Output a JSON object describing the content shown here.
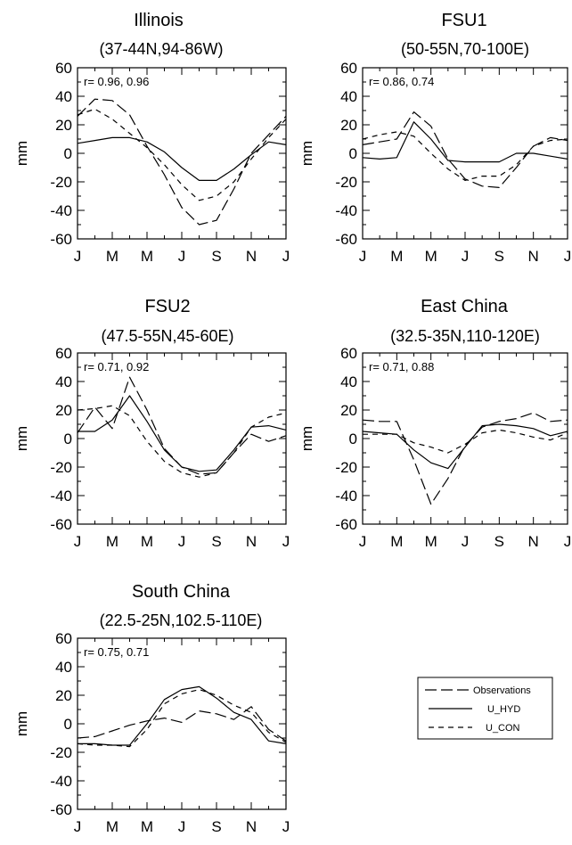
{
  "chart_data": [
    {
      "type": "line",
      "title": "Illinois",
      "subtitle": "(37-44N,94-86W)",
      "ylabel": "mm",
      "ylim": [
        -60,
        60
      ],
      "yticks": [
        "60",
        "40",
        "20",
        "0",
        "-20",
        "-40",
        "-60"
      ],
      "xticklabels": [
        "J",
        "M",
        "M",
        "J",
        "S",
        "N",
        "J"
      ],
      "r_text": "r= 0.96,  0.96",
      "x": [
        1,
        2,
        3,
        4,
        5,
        6,
        7,
        8,
        9,
        10,
        11,
        12,
        13
      ],
      "series": [
        {
          "name": "Observations",
          "values": [
            26,
            38,
            37,
            27,
            5,
            -15,
            -38,
            -50,
            -47,
            -25,
            0,
            13,
            26
          ]
        },
        {
          "name": "U_HYD",
          "values": [
            7,
            9,
            11,
            11,
            8,
            1,
            -10,
            -19,
            -19,
            -11,
            -1,
            8,
            6
          ]
        },
        {
          "name": "U_CON",
          "values": [
            27,
            31,
            24,
            14,
            4,
            -8,
            -22,
            -33,
            -30,
            -20,
            -4,
            11,
            24
          ]
        }
      ]
    },
    {
      "type": "line",
      "title": "FSU1",
      "subtitle": "(50-55N,70-100E)",
      "ylabel": "mm",
      "ylim": [
        -60,
        60
      ],
      "yticks": [
        "60",
        "40",
        "20",
        "0",
        "-20",
        "-40",
        "-60"
      ],
      "xticklabels": [
        "J",
        "M",
        "M",
        "J",
        "S",
        "N",
        "J"
      ],
      "r_text": "r= 0.86,  0.74",
      "x": [
        1,
        2,
        3,
        4,
        5,
        6,
        7,
        8,
        9,
        10,
        11,
        12,
        13
      ],
      "series": [
        {
          "name": "Observations",
          "values": [
            6,
            8,
            10,
            29,
            19,
            -4,
            -18,
            -23,
            -24,
            -10,
            5,
            11,
            9
          ]
        },
        {
          "name": "U_HYD",
          "values": [
            -3,
            -4,
            -3,
            22,
            10,
            -5,
            -6,
            -6,
            -6,
            0,
            0,
            -2,
            -4
          ]
        },
        {
          "name": "U_CON",
          "values": [
            10,
            13,
            15,
            12,
            0,
            -11,
            -19,
            -16,
            -16,
            -8,
            5,
            9,
            10
          ]
        }
      ]
    },
    {
      "type": "line",
      "title": "FSU2",
      "subtitle": "(47.5-55N,45-60E)",
      "ylabel": "mm",
      "ylim": [
        -60,
        60
      ],
      "yticks": [
        "60",
        "40",
        "20",
        "0",
        "-20",
        "-40",
        "-60"
      ],
      "xticklabels": [
        "J",
        "M",
        "M",
        "J",
        "S",
        "N",
        "J"
      ],
      "r_text": "r= 0.71,  0.92",
      "x": [
        1,
        2,
        3,
        4,
        5,
        6,
        7,
        8,
        9,
        10,
        11,
        12,
        13
      ],
      "series": [
        {
          "name": "Observations",
          "values": [
            4,
            22,
            7,
            43,
            20,
            -7,
            -20,
            -25,
            -24,
            -10,
            3,
            -2,
            2
          ]
        },
        {
          "name": "U_HYD",
          "values": [
            5,
            5,
            13,
            30,
            12,
            -8,
            -20,
            -23,
            -22,
            -8,
            8,
            9,
            6
          ]
        },
        {
          "name": "U_CON",
          "values": [
            20,
            21,
            23,
            16,
            -2,
            -16,
            -24,
            -27,
            -24,
            -10,
            8,
            15,
            18
          ]
        }
      ]
    },
    {
      "type": "line",
      "title": "East China",
      "subtitle": "(32.5-35N,110-120E)",
      "ylabel": "mm",
      "ylim": [
        -60,
        60
      ],
      "yticks": [
        "60",
        "40",
        "20",
        "0",
        "-20",
        "-40",
        "-60"
      ],
      "xticklabels": [
        "J",
        "M",
        "M",
        "J",
        "S",
        "N",
        "J"
      ],
      "r_text": "r= 0.71,  0.88",
      "x": [
        1,
        2,
        3,
        4,
        5,
        6,
        7,
        8,
        9,
        10,
        11,
        12,
        13
      ],
      "series": [
        {
          "name": "Observations",
          "values": [
            13,
            12,
            12,
            -15,
            -46,
            -28,
            -5,
            8,
            12,
            14,
            18,
            12,
            13
          ]
        },
        {
          "name": "U_HYD",
          "values": [
            5,
            4,
            3,
            -8,
            -17,
            -21,
            -6,
            9,
            10,
            9,
            7,
            2,
            5
          ]
        },
        {
          "name": "U_CON",
          "values": [
            3,
            3,
            3,
            -3,
            -6,
            -10,
            -4,
            4,
            6,
            4,
            1,
            -1,
            4
          ]
        }
      ]
    },
    {
      "type": "line",
      "title": "South China",
      "subtitle": "(22.5-25N,102.5-110E)",
      "ylabel": "mm",
      "ylim": [
        -60,
        60
      ],
      "yticks": [
        "60",
        "40",
        "20",
        "0",
        "-20",
        "-40",
        "-60"
      ],
      "xticklabels": [
        "J",
        "M",
        "M",
        "J",
        "S",
        "N",
        "J"
      ],
      "r_text": "r= 0.75,  0.71",
      "x": [
        1,
        2,
        3,
        4,
        5,
        6,
        7,
        8,
        9,
        10,
        11,
        12,
        13
      ],
      "series": [
        {
          "name": "Observations",
          "values": [
            -10,
            -9,
            -5,
            -1,
            2,
            4,
            1,
            9,
            7,
            3,
            12,
            -4,
            -12
          ]
        },
        {
          "name": "U_HYD",
          "values": [
            -14,
            -14,
            -15,
            -15,
            0,
            17,
            24,
            26,
            18,
            8,
            3,
            -12,
            -14
          ]
        },
        {
          "name": "U_CON",
          "values": [
            -14,
            -15,
            -15,
            -16,
            -4,
            14,
            21,
            24,
            20,
            13,
            8,
            -6,
            -13
          ]
        }
      ]
    }
  ],
  "legend": {
    "items": [
      {
        "label": "Observations",
        "style": "long-dash"
      },
      {
        "label": "U_HYD",
        "style": "solid"
      },
      {
        "label": "U_CON",
        "style": "short-dash"
      }
    ]
  }
}
